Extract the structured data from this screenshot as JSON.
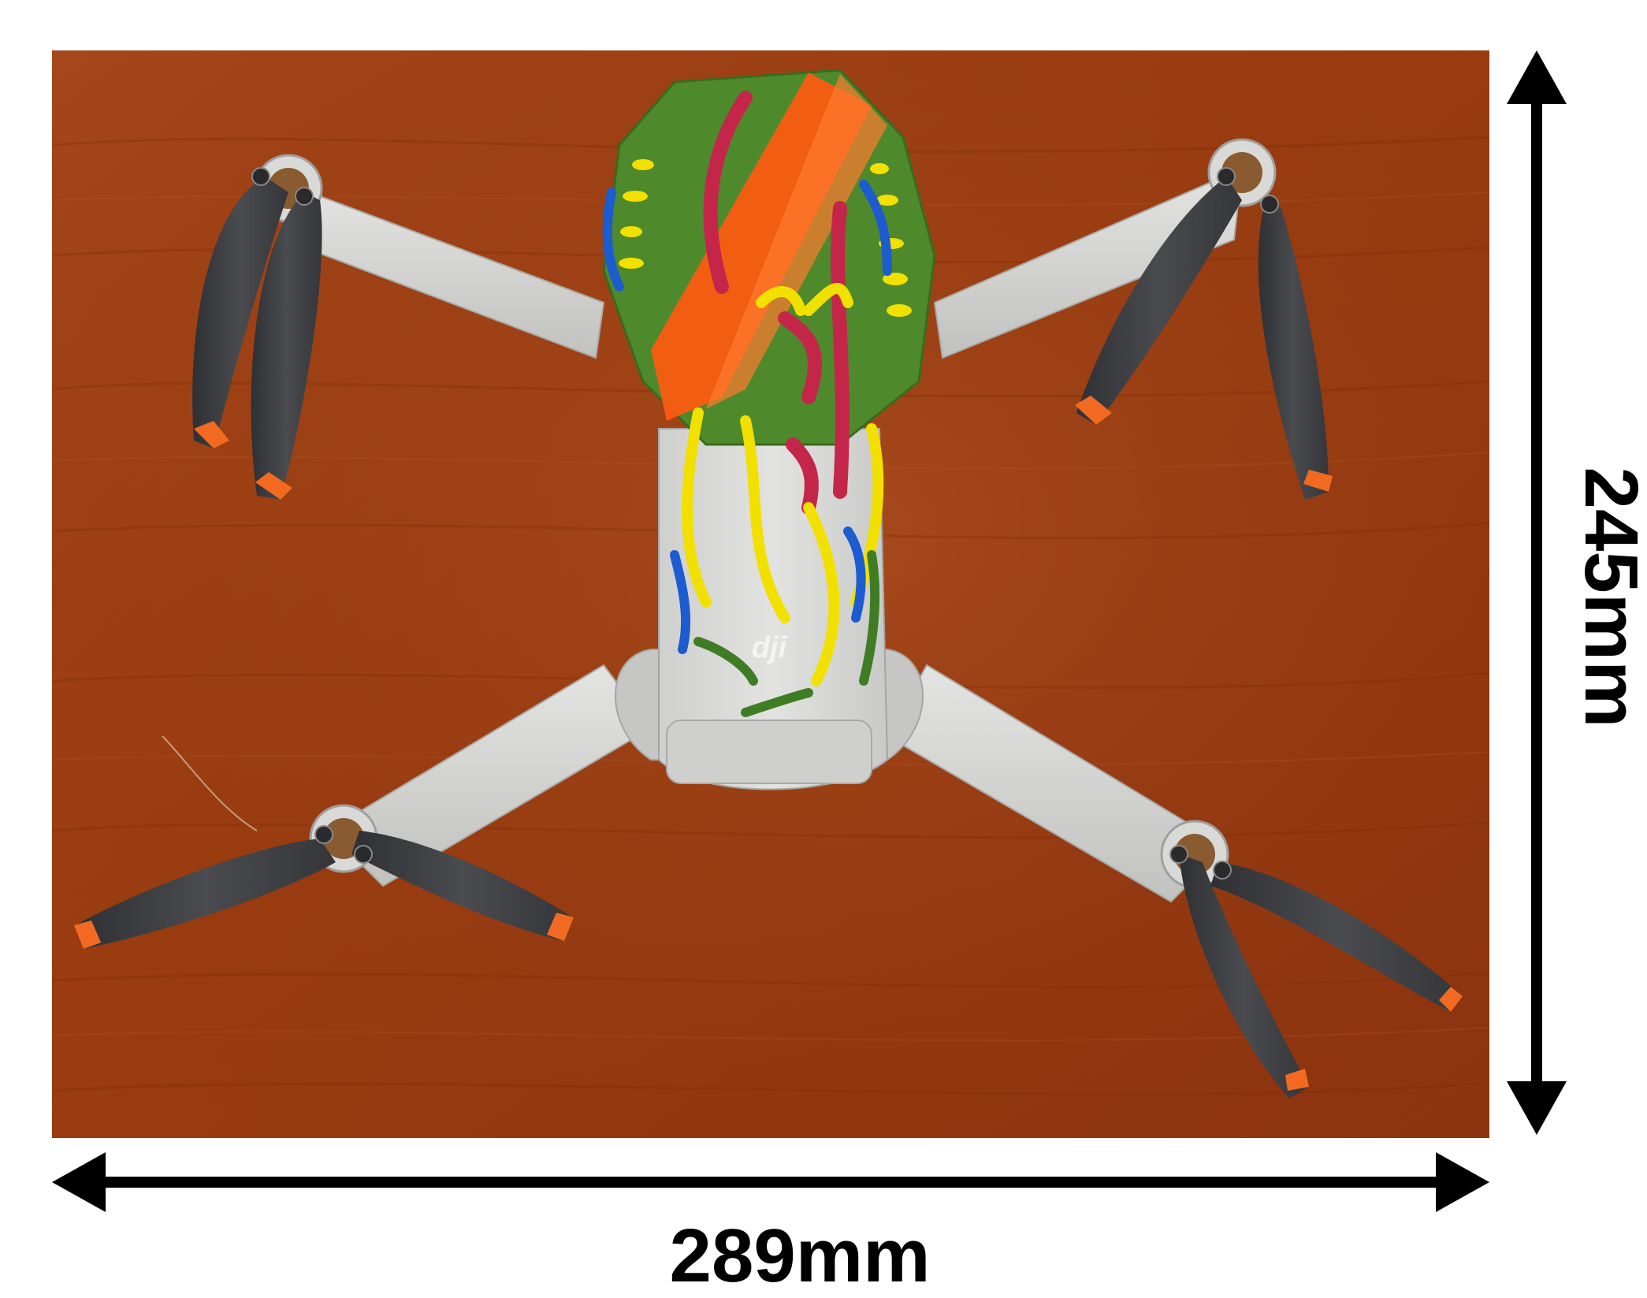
{
  "dimensions": {
    "width_label": "289mm",
    "height_label": "245mm"
  },
  "photo": {
    "logo_text": "dji"
  },
  "colors": {
    "wood": "#9c3f12",
    "arm": "#d3d4d2",
    "propeller": "#3e3f42",
    "prop_tip": "#f26a22",
    "paint_green": "#4e8a2c",
    "paint_orange": "#ff5a10",
    "paint_yellow": "#f2e000",
    "paint_red": "#c4264a",
    "paint_blue": "#1c5bd0",
    "ink": "#000000"
  }
}
